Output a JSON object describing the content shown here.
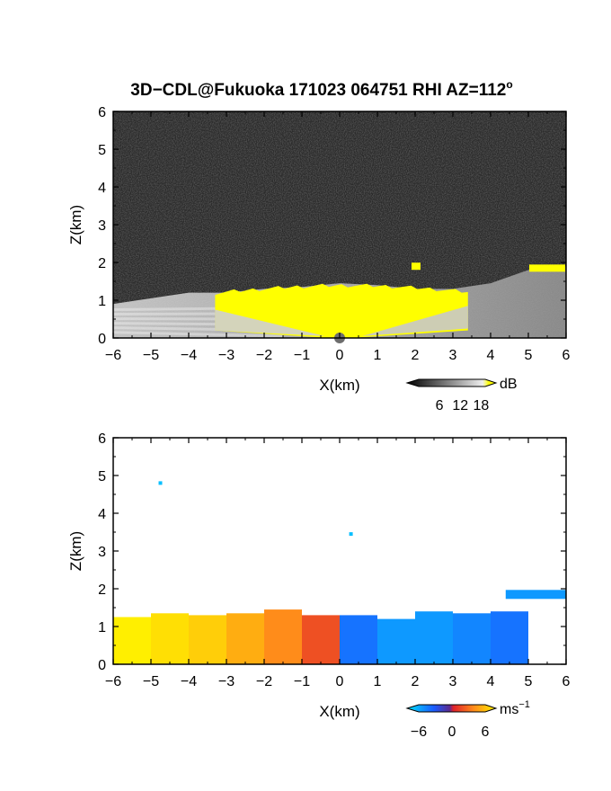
{
  "figure": {
    "title": "3D−CDL@Fukuoka 171023 064751 RHI AZ=112",
    "title_sup": "o"
  },
  "chart_data": [
    {
      "type": "heatmap",
      "panel": "top",
      "variable": "backscatter intensity",
      "xlabel": "X(km)",
      "ylabel": "Z(km)",
      "xlim": [
        -6,
        6
      ],
      "ylim": [
        0,
        6
      ],
      "xticks": [
        -6,
        -5,
        -4,
        -3,
        -2,
        -1,
        0,
        1,
        2,
        3,
        4,
        5,
        6
      ],
      "yticks": [
        0,
        1,
        2,
        3,
        4,
        5,
        6
      ],
      "colorbar": {
        "unit": "dB",
        "ticks": [
          6,
          12,
          18
        ],
        "colors": [
          "#000000",
          "#ffffff",
          "#ffff00"
        ]
      },
      "layer_top_km": [
        [
          -6,
          0.9
        ],
        [
          -5,
          1.05
        ],
        [
          -4,
          1.2
        ],
        [
          -3,
          1.2
        ],
        [
          -2,
          1.3
        ],
        [
          -1,
          1.35
        ],
        [
          0,
          1.45
        ],
        [
          1,
          1.4
        ],
        [
          2,
          1.3
        ],
        [
          3,
          1.3
        ],
        [
          4,
          1.45
        ],
        [
          5,
          1.8
        ],
        [
          6,
          1.9
        ]
      ],
      "high_intensity_extent_km": [
        -3.3,
        3.4
      ],
      "isolated_echoes": [
        {
          "x": 2.0,
          "z": 1.9
        },
        {
          "x": 5.5,
          "z": 1.85
        }
      ]
    },
    {
      "type": "heatmap",
      "panel": "bottom",
      "variable": "radial velocity",
      "xlabel": "X(km)",
      "ylabel": "Z(km)",
      "xlim": [
        -6,
        6
      ],
      "ylim": [
        0,
        6
      ],
      "xticks": [
        -6,
        -5,
        -4,
        -3,
        -2,
        -1,
        0,
        1,
        2,
        3,
        4,
        5,
        6
      ],
      "yticks": [
        0,
        1,
        2,
        3,
        4,
        5,
        6
      ],
      "colorbar": {
        "unit": "ms",
        "unit_sup": "−1",
        "ticks": [
          -6,
          0,
          6
        ],
        "tick_labels": [
          "−6",
          "0",
          "6"
        ],
        "range": [
          -6,
          6
        ]
      },
      "profile": [
        {
          "x": -5.5,
          "z_top": 1.25,
          "velocity": 6
        },
        {
          "x": -4.5,
          "z_top": 1.35,
          "velocity": 5.5
        },
        {
          "x": -3.5,
          "z_top": 1.3,
          "velocity": 5
        },
        {
          "x": -2.5,
          "z_top": 1.35,
          "velocity": 4
        },
        {
          "x": -1.5,
          "z_top": 1.45,
          "velocity": 3
        },
        {
          "x": -0.5,
          "z_top": 1.3,
          "velocity": 1.5
        },
        {
          "x": 0.5,
          "z_top": 1.3,
          "velocity": -3
        },
        {
          "x": 1.5,
          "z_top": 1.2,
          "velocity": -4
        },
        {
          "x": 2.5,
          "z_top": 1.4,
          "velocity": -4
        },
        {
          "x": 3.5,
          "z_top": 1.35,
          "velocity": -3.5
        },
        {
          "x": 4.5,
          "z_top": 1.4,
          "velocity": -3
        }
      ],
      "upper_layer": {
        "x_start": 4.4,
        "x_end": 6.0,
        "z": 1.85,
        "velocity": -4
      },
      "isolated_points": [
        {
          "x": -4.75,
          "z": 4.8,
          "velocity": -5
        },
        {
          "x": 0.3,
          "z": 3.45,
          "velocity": -5
        }
      ]
    }
  ]
}
